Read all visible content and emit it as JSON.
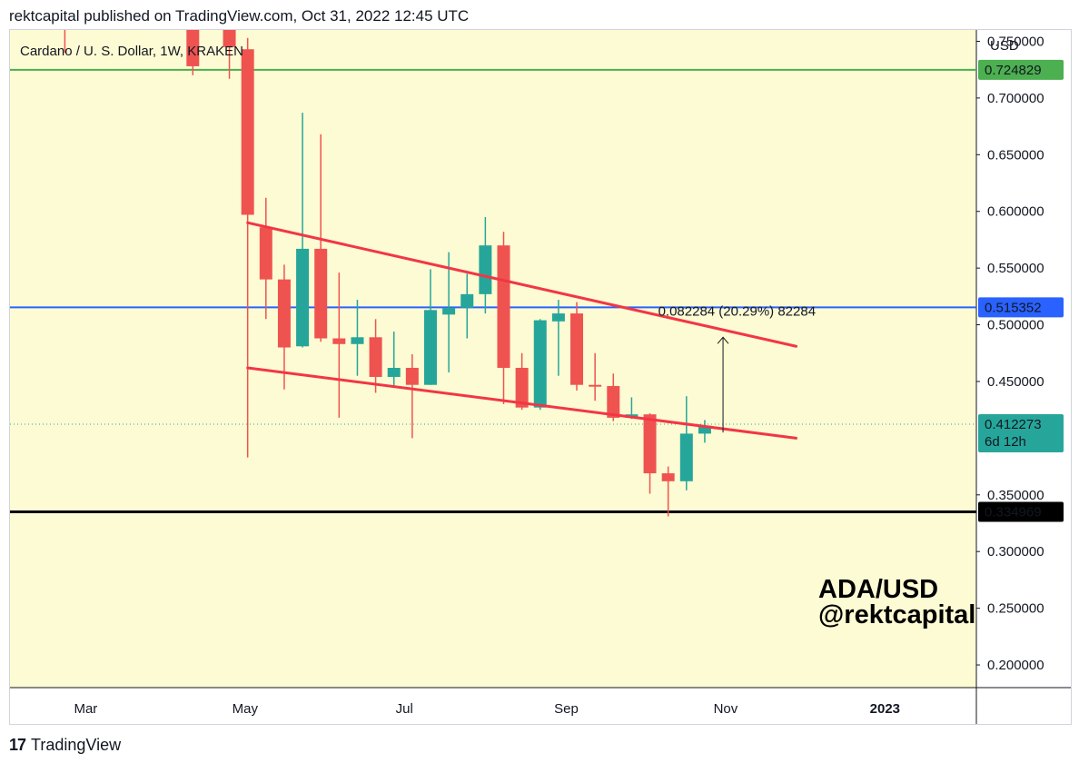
{
  "header": {
    "published": "rektcapital published on TradingView.com, Oct 31, 2022 12:45 UTC"
  },
  "chart_header": {
    "symbol": "Cardano / U. S. Dollar, 1W, KRAKEN",
    "currency": "USD"
  },
  "watermark": {
    "line1": "ADA/USD",
    "line2": "@rektcapital"
  },
  "footer": {
    "brand": "TradingView",
    "logo_glyph": "17"
  },
  "colors": {
    "background": "#fdfbd3",
    "up": "#26a69a",
    "down": "#ef5350",
    "green_line": "#4caf50",
    "blue_line": "#2962ff",
    "black_line": "#000000",
    "trendline": "#f23645"
  },
  "chart_data": {
    "type": "candlestick",
    "title": "Cardano / U. S. Dollar, 1W, KRAKEN",
    "ylim": [
      0.18,
      0.76
    ],
    "y_ticks": [
      "0.750000",
      "0.700000",
      "0.650000",
      "0.600000",
      "0.550000",
      "0.500000",
      "0.450000",
      "0.350000",
      "0.300000",
      "0.250000",
      "0.200000"
    ],
    "x_ticks": [
      "Mar",
      "May",
      "Jul",
      "Sep",
      "Nov",
      "2023"
    ],
    "x_tick_dates": [
      "2022-03-01",
      "2022-05-01",
      "2022-07-01",
      "2022-09-01",
      "2022-11-01",
      "2023-01-01"
    ],
    "x_range": [
      "2022-01-31",
      "2023-02-05"
    ],
    "candles": [
      {
        "date": "2022-02-21",
        "o": 0.94,
        "h": 0.98,
        "l": 0.74,
        "c": 0.85
      },
      {
        "date": "2022-04-11",
        "o": 0.92,
        "h": 0.96,
        "l": 0.72,
        "c": 0.728
      },
      {
        "date": "2022-04-25",
        "o": 0.785,
        "h": 0.807,
        "l": 0.717,
        "c": 0.745
      },
      {
        "date": "2022-05-02",
        "o": 0.743,
        "h": 0.753,
        "l": 0.383,
        "c": 0.597
      },
      {
        "date": "2022-05-09",
        "o": 0.586,
        "h": 0.612,
        "l": 0.505,
        "c": 0.54
      },
      {
        "date": "2022-05-16",
        "o": 0.54,
        "h": 0.553,
        "l": 0.443,
        "c": 0.48
      },
      {
        "date": "2022-05-23",
        "o": 0.481,
        "h": 0.687,
        "l": 0.48,
        "c": 0.567
      },
      {
        "date": "2022-05-30",
        "o": 0.567,
        "h": 0.668,
        "l": 0.485,
        "c": 0.488
      },
      {
        "date": "2022-06-06",
        "o": 0.488,
        "h": 0.546,
        "l": 0.418,
        "c": 0.483
      },
      {
        "date": "2022-06-13",
        "o": 0.483,
        "h": 0.522,
        "l": 0.455,
        "c": 0.489
      },
      {
        "date": "2022-06-20",
        "o": 0.489,
        "h": 0.505,
        "l": 0.44,
        "c": 0.454
      },
      {
        "date": "2022-06-27",
        "o": 0.454,
        "h": 0.494,
        "l": 0.445,
        "c": 0.462
      },
      {
        "date": "2022-07-04",
        "o": 0.462,
        "h": 0.474,
        "l": 0.4,
        "c": 0.447
      },
      {
        "date": "2022-07-11",
        "o": 0.447,
        "h": 0.549,
        "l": 0.447,
        "c": 0.513
      },
      {
        "date": "2022-07-18",
        "o": 0.509,
        "h": 0.564,
        "l": 0.458,
        "c": 0.515
      },
      {
        "date": "2022-07-25",
        "o": 0.515,
        "h": 0.545,
        "l": 0.488,
        "c": 0.527
      },
      {
        "date": "2022-08-01",
        "o": 0.527,
        "h": 0.595,
        "l": 0.51,
        "c": 0.57
      },
      {
        "date": "2022-08-08",
        "o": 0.57,
        "h": 0.582,
        "l": 0.43,
        "c": 0.462
      },
      {
        "date": "2022-08-15",
        "o": 0.462,
        "h": 0.475,
        "l": 0.425,
        "c": 0.427
      },
      {
        "date": "2022-08-22",
        "o": 0.427,
        "h": 0.505,
        "l": 0.425,
        "c": 0.504
      },
      {
        "date": "2022-08-29",
        "o": 0.503,
        "h": 0.522,
        "l": 0.455,
        "c": 0.51
      },
      {
        "date": "2022-09-05",
        "o": 0.51,
        "h": 0.52,
        "l": 0.442,
        "c": 0.447
      },
      {
        "date": "2022-09-12",
        "o": 0.447,
        "h": 0.475,
        "l": 0.433,
        "c": 0.446
      },
      {
        "date": "2022-09-19",
        "o": 0.446,
        "h": 0.457,
        "l": 0.415,
        "c": 0.418
      },
      {
        "date": "2022-09-26",
        "o": 0.418,
        "h": 0.436,
        "l": 0.417,
        "c": 0.421
      },
      {
        "date": "2022-10-03",
        "o": 0.421,
        "h": 0.422,
        "l": 0.351,
        "c": 0.369
      },
      {
        "date": "2022-10-10",
        "o": 0.369,
        "h": 0.375,
        "l": 0.331,
        "c": 0.362
      },
      {
        "date": "2022-10-17",
        "o": 0.362,
        "h": 0.437,
        "l": 0.354,
        "c": 0.404
      },
      {
        "date": "2022-10-24",
        "o": 0.404,
        "h": 0.416,
        "l": 0.396,
        "c": 0.411
      }
    ],
    "horizontal_levels": [
      {
        "value": 0.724829,
        "label": "0.724829",
        "color": "#4caf50"
      },
      {
        "value": 0.515352,
        "label": "0.515352",
        "color": "#2962ff"
      },
      {
        "value": 0.334969,
        "label": "0.334969",
        "color": "#000000"
      }
    ],
    "current_price": {
      "value": 0.412273,
      "label": "0.412273",
      "countdown": "6d 12h"
    },
    "trendlines": [
      {
        "from": {
          "date": "2022-05-02",
          "value": 0.59
        },
        "to": {
          "date": "2022-11-28",
          "value": 0.481
        }
      },
      {
        "from": {
          "date": "2022-05-02",
          "value": 0.462
        },
        "to": {
          "date": "2022-11-28",
          "value": 0.4
        }
      }
    ],
    "measure": {
      "date": "2022-10-31",
      "from": 0.405,
      "to": 0.489,
      "label": "0.082284 (20.29%) 82284"
    }
  }
}
